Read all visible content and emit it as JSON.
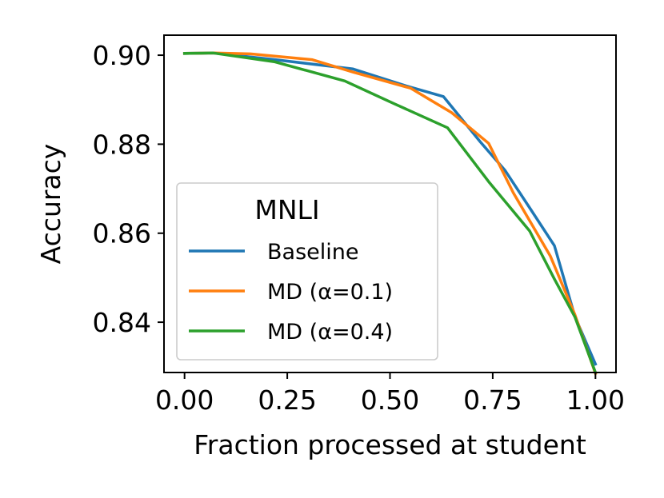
{
  "chart_data": {
    "type": "line",
    "xlabel": "Fraction processed at student",
    "ylabel": "Accuracy",
    "xlim": [
      -0.05,
      1.05
    ],
    "ylim": [
      0.8287,
      0.9045
    ],
    "xticks": [
      0.0,
      0.25,
      0.5,
      0.75,
      1.0
    ],
    "xtick_labels": [
      "0.00",
      "0.25",
      "0.50",
      "0.75",
      "1.00"
    ],
    "yticks": [
      0.84,
      0.86,
      0.88,
      0.9
    ],
    "ytick_labels": [
      "0.84",
      "0.86",
      "0.88",
      "0.90"
    ],
    "grid": false,
    "legend": {
      "title": "MNLI",
      "placement": "lower-left"
    },
    "series": [
      {
        "name": "Baseline",
        "color": "#1f77b4",
        "x": [
          0.0,
          0.07,
          0.22,
          0.41,
          0.54,
          0.63,
          0.72,
          0.78,
          0.84,
          0.9,
          0.95,
          1.0
        ],
        "y": [
          0.9004,
          0.9005,
          0.899,
          0.8969,
          0.8931,
          0.8907,
          0.8805,
          0.8741,
          0.8657,
          0.8572,
          0.8413,
          0.8306
        ]
      },
      {
        "name": "MD (α=0.1)",
        "color": "#ff7f0e",
        "x": [
          0.0,
          0.07,
          0.16,
          0.31,
          0.41,
          0.55,
          0.65,
          0.74,
          0.8,
          0.89,
          0.95,
          1.0
        ],
        "y": [
          0.9004,
          0.9005,
          0.9003,
          0.899,
          0.8962,
          0.8926,
          0.8871,
          0.8802,
          0.8691,
          0.8549,
          0.8417,
          0.8285
        ]
      },
      {
        "name": "MD (α=0.4)",
        "color": "#2ca02c",
        "x": [
          0.0,
          0.07,
          0.22,
          0.39,
          0.51,
          0.64,
          0.74,
          0.84,
          0.9,
          0.95,
          1.0
        ],
        "y": [
          0.9004,
          0.9005,
          0.8985,
          0.8942,
          0.8891,
          0.8837,
          0.8716,
          0.8605,
          0.8497,
          0.8412,
          0.8287
        ]
      }
    ]
  }
}
